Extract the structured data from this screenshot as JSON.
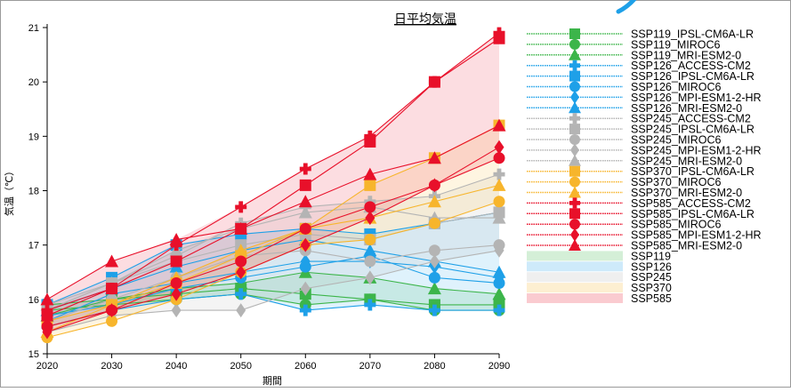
{
  "chart_data": {
    "type": "line",
    "title": "日平均気温",
    "xlabel": "期間",
    "ylabel": "気温（℃）",
    "x": [
      2020,
      2030,
      2040,
      2050,
      2060,
      2070,
      2080,
      2090
    ],
    "ylim": [
      15,
      21
    ],
    "yticks": [
      15,
      16,
      17,
      18,
      19,
      20,
      21
    ],
    "grid": false,
    "legend_position": "right",
    "series": [
      {
        "name": "SSP119_IPSL-CM6A-LR",
        "color": "#3cb54a",
        "marker": "square",
        "values": [
          15.9,
          16.0,
          16.1,
          16.2,
          16.1,
          16.0,
          15.9,
          15.9
        ]
      },
      {
        "name": "SSP119_MIROC6",
        "color": "#3cb54a",
        "marker": "circle",
        "values": [
          15.8,
          15.9,
          16.0,
          16.1,
          15.9,
          16.0,
          15.8,
          15.8
        ]
      },
      {
        "name": "SSP119_MRI-ESM2-0",
        "color": "#3cb54a",
        "marker": "triangle",
        "values": [
          15.7,
          16.0,
          16.2,
          16.3,
          16.5,
          16.4,
          16.2,
          16.1
        ]
      },
      {
        "name": "SSP126_ACCESS-CM2",
        "color": "#1ea0e8",
        "marker": "plus",
        "values": [
          15.5,
          15.8,
          16.0,
          16.1,
          15.8,
          15.9,
          15.8,
          15.8
        ]
      },
      {
        "name": "SSP126_IPSL-CM6A-LR",
        "color": "#1ea0e8",
        "marker": "square",
        "values": [
          15.9,
          16.4,
          17.0,
          17.2,
          17.3,
          17.2,
          17.4,
          17.6
        ]
      },
      {
        "name": "SSP126_MIROC6",
        "color": "#1ea0e8",
        "marker": "circle",
        "values": [
          15.7,
          15.9,
          16.2,
          16.4,
          16.6,
          16.8,
          16.4,
          16.3
        ]
      },
      {
        "name": "SSP126_MPI-ESM1-2-HR",
        "color": "#1ea0e8",
        "marker": "diamond",
        "values": [
          15.6,
          16.1,
          16.3,
          16.5,
          16.7,
          16.7,
          16.6,
          16.4
        ]
      },
      {
        "name": "SSP126_MRI-ESM2-0",
        "color": "#1ea0e8",
        "marker": "triangle",
        "values": [
          15.8,
          16.2,
          16.6,
          16.9,
          17.1,
          16.9,
          16.7,
          16.5
        ]
      },
      {
        "name": "SSP245_ACCESS-CM2",
        "color": "#b4b4b4",
        "marker": "plus",
        "values": [
          15.8,
          16.3,
          16.8,
          17.4,
          17.7,
          17.8,
          17.9,
          18.3
        ]
      },
      {
        "name": "SSP245_IPSL-CM6A-LR",
        "color": "#b4b4b4",
        "marker": "square",
        "values": [
          15.8,
          16.3,
          16.7,
          17.0,
          17.2,
          17.1,
          17.4,
          17.6
        ]
      },
      {
        "name": "SSP245_MIROC6",
        "color": "#b4b4b4",
        "marker": "circle",
        "values": [
          15.6,
          16.0,
          16.4,
          16.8,
          16.9,
          16.7,
          16.9,
          17.0
        ]
      },
      {
        "name": "SSP245_MPI-ESM1-2-HR",
        "color": "#b4b4b4",
        "marker": "diamond",
        "values": [
          15.4,
          15.7,
          15.8,
          15.8,
          16.2,
          16.4,
          16.7,
          16.9
        ]
      },
      {
        "name": "SSP245_MRI-ESM2-0",
        "color": "#b4b4b4",
        "marker": "triangle",
        "values": [
          15.9,
          16.3,
          16.9,
          17.3,
          17.6,
          17.7,
          17.5,
          17.5
        ]
      },
      {
        "name": "SSP370_IPSL-CM6A-LR",
        "color": "#f7b52c",
        "marker": "square",
        "values": [
          15.6,
          15.9,
          16.3,
          16.8,
          17.3,
          18.1,
          18.6,
          19.2
        ]
      },
      {
        "name": "SSP370_MIROC6",
        "color": "#f7b52c",
        "marker": "circle",
        "values": [
          15.3,
          15.6,
          16.0,
          16.5,
          17.0,
          17.1,
          17.4,
          17.8
        ]
      },
      {
        "name": "SSP370_MRI-ESM2-0",
        "color": "#f7b52c",
        "marker": "triangle",
        "values": [
          15.4,
          15.9,
          16.4,
          16.9,
          17.3,
          17.5,
          17.8,
          18.1
        ]
      },
      {
        "name": "SSP585_ACCESS-CM2",
        "color": "#e8102a",
        "marker": "plus",
        "values": [
          15.8,
          16.2,
          17.0,
          17.7,
          18.4,
          19.0,
          20.0,
          20.9
        ]
      },
      {
        "name": "SSP585_IPSL-CM6A-LR",
        "color": "#e8102a",
        "marker": "square",
        "values": [
          15.7,
          16.2,
          16.7,
          17.3,
          18.1,
          18.9,
          20.0,
          20.8
        ]
      },
      {
        "name": "SSP585_MIROC6",
        "color": "#e8102a",
        "marker": "circle",
        "values": [
          15.5,
          15.8,
          16.3,
          16.7,
          17.3,
          17.7,
          18.1,
          18.6
        ]
      },
      {
        "name": "SSP585_MPI-ESM1-2-HR",
        "color": "#e8102a",
        "marker": "diamond",
        "values": [
          15.4,
          15.8,
          16.1,
          16.5,
          17.0,
          17.5,
          18.1,
          18.8
        ]
      },
      {
        "name": "SSP585_MRI-ESM2-0",
        "color": "#e8102a",
        "marker": "triangle",
        "values": [
          16.0,
          16.7,
          17.1,
          17.3,
          17.8,
          18.3,
          18.6,
          19.2
        ]
      }
    ],
    "bands": [
      {
        "name": "SSP119",
        "color": "#3cb54a"
      },
      {
        "name": "SSP126",
        "color": "#1ea0e8"
      },
      {
        "name": "SSP245",
        "color": "#b4b4b4"
      },
      {
        "name": "SSP370",
        "color": "#f7b52c"
      },
      {
        "name": "SSP585",
        "color": "#e8102a"
      }
    ]
  }
}
